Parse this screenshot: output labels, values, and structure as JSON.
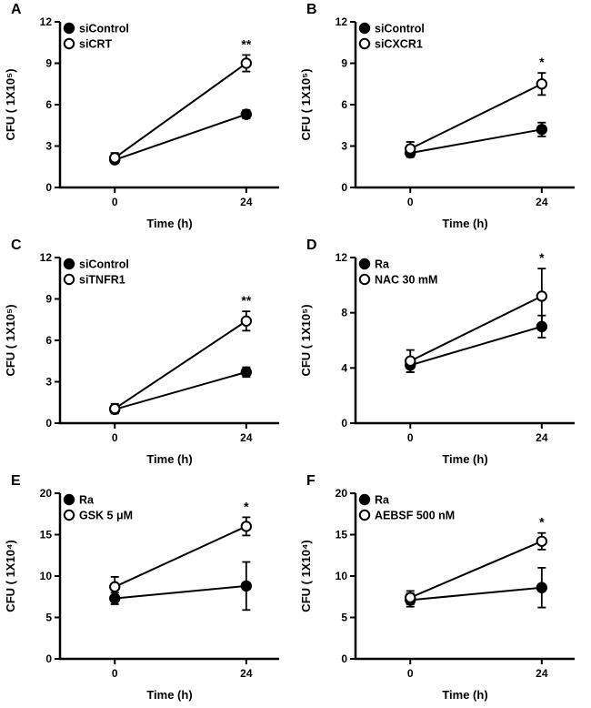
{
  "figure_title": "",
  "colors": {
    "line": "#000000",
    "filled_marker": "#000000",
    "open_marker_fill": "#ffffff",
    "background": "#ffffff"
  },
  "chart_data": [
    {
      "type": "line",
      "panel": "A",
      "x": [
        0,
        24
      ],
      "xtick_labels": [
        "0",
        "24"
      ],
      "xlabel": "Time (h)",
      "ylabel": "CFU ( 1X10⁵)",
      "ylim": [
        0,
        12
      ],
      "yticks": [
        0,
        3,
        6,
        9,
        12
      ],
      "legend_position": "top-left",
      "grid": false,
      "series": [
        {
          "name": "siControl",
          "marker": "filled",
          "values": [
            2.0,
            5.3
          ],
          "errors": [
            0.25,
            0.3
          ]
        },
        {
          "name": "siCRT",
          "marker": "open",
          "values": [
            2.15,
            9.0
          ],
          "errors": [
            0.35,
            0.6
          ]
        }
      ],
      "significance": {
        "label": "**",
        "series": "siCRT",
        "at_x": 24
      }
    },
    {
      "type": "line",
      "panel": "B",
      "x": [
        0,
        24
      ],
      "xtick_labels": [
        "0",
        "24"
      ],
      "xlabel": "Time (h)",
      "ylabel": "CFU ( 1X10⁵)",
      "ylim": [
        0,
        12
      ],
      "yticks": [
        0,
        3,
        6,
        9,
        12
      ],
      "legend_position": "top-left",
      "grid": false,
      "series": [
        {
          "name": "siControl",
          "marker": "filled",
          "values": [
            2.5,
            4.2
          ],
          "errors": [
            0.3,
            0.5
          ]
        },
        {
          "name": "siCXCR1",
          "marker": "open",
          "values": [
            2.8,
            7.5
          ],
          "errors": [
            0.5,
            0.8
          ]
        }
      ],
      "significance": {
        "label": "*",
        "series": "siCXCR1",
        "at_x": 24
      }
    },
    {
      "type": "line",
      "panel": "C",
      "x": [
        0,
        24
      ],
      "xtick_labels": [
        "0",
        "24"
      ],
      "xlabel": "Time (h)",
      "ylabel": "CFU ( 1X10⁵)",
      "ylim": [
        0,
        12
      ],
      "yticks": [
        0,
        3,
        6,
        9,
        12
      ],
      "legend_position": "top-left",
      "grid": false,
      "series": [
        {
          "name": "siControl",
          "marker": "filled",
          "values": [
            1.0,
            3.7
          ],
          "errors": [
            0.25,
            0.35
          ]
        },
        {
          "name": "siTNFR1",
          "marker": "open",
          "values": [
            1.05,
            7.4
          ],
          "errors": [
            0.35,
            0.7
          ]
        }
      ],
      "significance": {
        "label": "**",
        "series": "siTNFR1",
        "at_x": 24
      }
    },
    {
      "type": "line",
      "panel": "D",
      "x": [
        0,
        24
      ],
      "xtick_labels": [
        "0",
        "24"
      ],
      "xlabel": "Time (h)",
      "ylabel": "CFU ( 1X10⁵)",
      "ylim": [
        0,
        12
      ],
      "yticks": [
        0,
        4,
        8,
        12
      ],
      "legend_position": "top-left",
      "grid": false,
      "series": [
        {
          "name": "Ra",
          "marker": "filled",
          "values": [
            4.2,
            7.0
          ],
          "errors": [
            0.5,
            0.8
          ]
        },
        {
          "name": "NAC 30 mM",
          "marker": "open",
          "values": [
            4.5,
            9.2
          ],
          "errors": [
            0.8,
            2.0
          ]
        }
      ],
      "significance": {
        "label": "*",
        "series": "NAC 30 mM",
        "at_x": 24
      }
    },
    {
      "type": "line",
      "panel": "E",
      "x": [
        0,
        24
      ],
      "xtick_labels": [
        "0",
        "24"
      ],
      "xlabel": "Time (h)",
      "ylabel": "CFU ( 1X10⁴)",
      "ylim": [
        0,
        20
      ],
      "yticks": [
        0,
        5,
        10,
        15,
        20
      ],
      "legend_position": "top-left",
      "grid": false,
      "series": [
        {
          "name": "Ra",
          "marker": "filled",
          "values": [
            7.3,
            8.8
          ],
          "errors": [
            0.7,
            2.9
          ]
        },
        {
          "name": "GSK 5 μM",
          "marker": "open",
          "values": [
            8.7,
            16.0
          ],
          "errors": [
            1.2,
            1.1
          ]
        }
      ],
      "significance": {
        "label": "*",
        "series": "GSK 5 μM",
        "at_x": 24
      }
    },
    {
      "type": "line",
      "panel": "F",
      "x": [
        0,
        24
      ],
      "xtick_labels": [
        "0",
        "24"
      ],
      "xlabel": "Time (h)",
      "ylabel": "CFU ( 1X10⁴)",
      "ylim": [
        0,
        20
      ],
      "yticks": [
        0,
        5,
        10,
        15,
        20
      ],
      "legend_position": "top-left",
      "grid": false,
      "series": [
        {
          "name": "Ra",
          "marker": "filled",
          "values": [
            7.1,
            8.6
          ],
          "errors": [
            0.8,
            2.4
          ]
        },
        {
          "name": "AEBSF 500 nM",
          "marker": "open",
          "values": [
            7.4,
            14.2
          ],
          "errors": [
            0.8,
            1.0
          ]
        }
      ],
      "significance": {
        "label": "*",
        "series": "AEBSF 500 nM",
        "at_x": 24
      }
    }
  ]
}
